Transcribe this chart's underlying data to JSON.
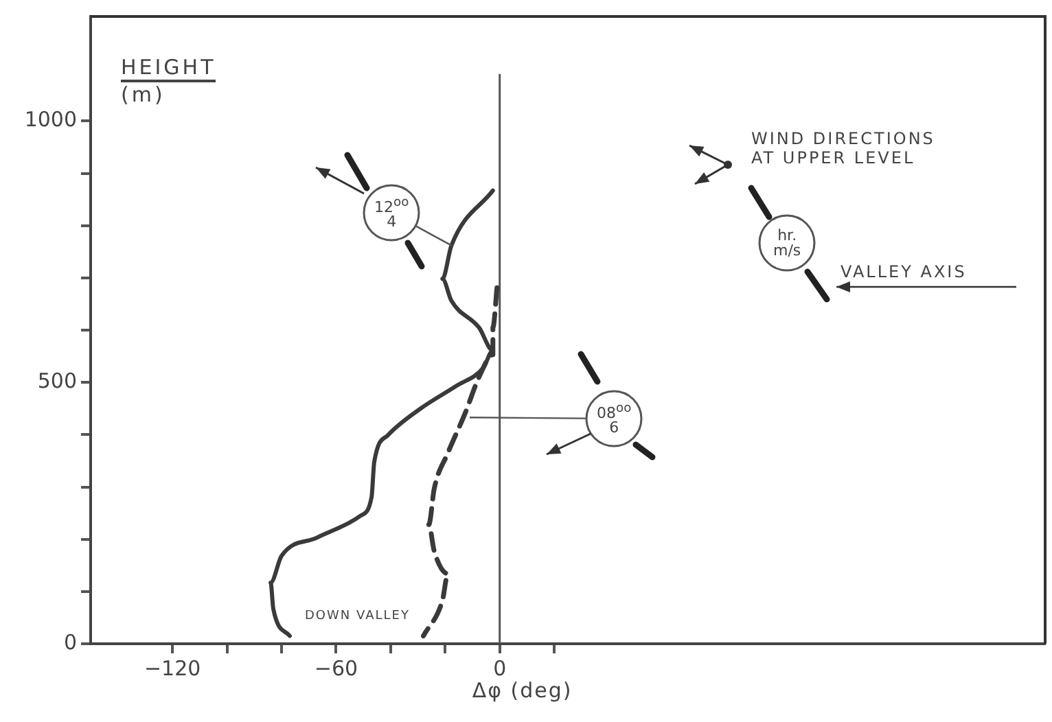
{
  "chart_data": {
    "type": "line",
    "xlabel": "Δφ (deg)",
    "ylabel": "HEIGHT\n(m)",
    "xlim": [
      -150,
      200
    ],
    "ylim": [
      0,
      1200
    ],
    "xticks": [
      {
        "value": -120,
        "label": "−120"
      },
      {
        "value": -100,
        "label": null
      },
      {
        "value": -80,
        "label": null
      },
      {
        "value": -60,
        "label": "−60"
      },
      {
        "value": -40,
        "label": null
      },
      {
        "value": -20,
        "label": null
      },
      0,
      {
        "value": 20,
        "label": null
      }
    ],
    "yticks": [
      0,
      {
        "value": 100,
        "label": null
      },
      {
        "value": 200,
        "label": null
      },
      {
        "value": 300,
        "label": null
      },
      {
        "value": 400,
        "label": null
      },
      500,
      {
        "value": 600,
        "label": null
      },
      {
        "value": 700,
        "label": null
      },
      {
        "value": 800,
        "label": null
      },
      {
        "value": 900,
        "label": null
      },
      1000
    ],
    "grid": false,
    "legend": false,
    "marker": "none",
    "ref_lines": [
      {
        "axis": "x",
        "value": 0,
        "color": "#555555"
      }
    ],
    "series": [
      {
        "color": "#3a3a3a",
        "line_style": "solid",
        "x": [
          -2.5,
          -17.7,
          -21,
          -17.7,
          -7.6,
          -2.5,
          -6,
          -16,
          -29,
          -41,
          -46,
          -47,
          -51,
          -67,
          -80,
          -84,
          -83,
          -77
        ],
        "values": [
          867,
          762,
          698,
          656,
          605,
          561,
          528,
          493,
          450,
          399,
          348,
          280,
          245,
          203,
          168,
          117,
          66,
          15
        ]
      },
      {
        "color": "#3a3a3a",
        "line_style": "dashed",
        "x": [
          -1,
          -2.5,
          -2.5,
          -7.6,
          -12.6,
          -19,
          -24,
          -26,
          -24,
          -19,
          -21,
          -28
        ],
        "values": [
          681,
          605,
          553,
          510,
          442,
          365,
          297,
          228,
          177,
          134,
          83,
          15
        ]
      }
    ],
    "annotations": [
      {
        "text": "12$^{oo}$\n4",
        "x": -17.7,
        "y": 762
      },
      {
        "text": "08$^{oo}$\n6",
        "x": -11,
        "y": 433
      },
      "hr.\nm/s",
      "WIND DIRECTIONS\nAT UPPER LEVEL",
      "VALLEY AXIS",
      "DOWN VALLEY"
    ]
  }
}
